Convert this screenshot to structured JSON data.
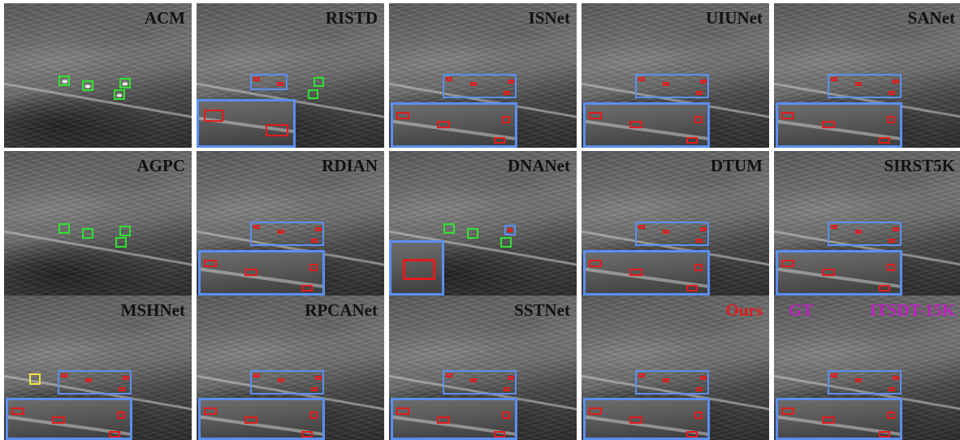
{
  "colors": {
    "method_label": "#111111",
    "ours_label": "#e31b1b",
    "gt_label": "#c21fc2",
    "dataset_label": "#c21fc2",
    "box_correct": "#e31b1b",
    "box_detection": "#2ee32e",
    "box_false_alarm": "#f0e83a",
    "box_zoom": "#5b8ff0"
  },
  "panels": [
    {
      "label": "ACM"
    },
    {
      "label": "RISTD"
    },
    {
      "label": "ISNet"
    },
    {
      "label": "UIUNet"
    },
    {
      "label": "SANet"
    },
    {
      "label": "AGPC"
    },
    {
      "label": "RDIAN"
    },
    {
      "label": "DNANet"
    },
    {
      "label": "DTUM"
    },
    {
      "label": "SIRST5K"
    },
    {
      "label": "MSHNet"
    },
    {
      "label": "RPCANet"
    },
    {
      "label": "SSTNet"
    },
    {
      "label": "Ours"
    },
    {
      "label": "ITSDT-15K",
      "extra_label": "GT"
    }
  ]
}
